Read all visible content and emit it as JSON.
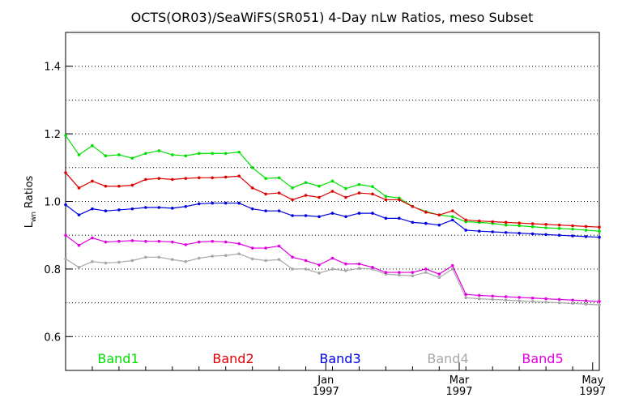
{
  "chart_data": {
    "type": "line",
    "title": "OCTS(OR03)/SeaWiFS(SR051) 4-Day nLw Ratios, meso Subset",
    "ylabel_main": "L",
    "ylabel_sub": "wn",
    "ylabel_rest": " Ratios",
    "xlabel": "",
    "ylim": [
      0.5,
      1.5
    ],
    "xlim": [
      0,
      40
    ],
    "grid": "horizontal dotted",
    "legend_placement": "bottom",
    "yticks": [
      {
        "value": 0.6,
        "label": "0.6"
      },
      {
        "value": 0.8,
        "label": "0.8"
      },
      {
        "value": 1.0,
        "label": "1.0"
      },
      {
        "value": 1.2,
        "label": "1.2"
      },
      {
        "value": 1.4,
        "label": "1.4"
      }
    ],
    "xticks": [
      {
        "value": 19.5,
        "month": "Jan",
        "year": "1997"
      },
      {
        "value": 29.5,
        "month": "Mar",
        "year": "1997"
      },
      {
        "value": 39.5,
        "month": "May",
        "year": "1997"
      }
    ],
    "x": [
      0,
      1,
      2,
      3,
      4,
      5,
      6,
      7,
      8,
      9,
      10,
      11,
      12,
      13,
      14,
      15,
      16,
      17,
      18,
      19,
      20,
      21,
      22,
      23,
      24,
      25,
      26,
      27,
      28,
      29,
      30,
      31,
      32,
      33,
      34,
      35,
      36,
      37,
      38,
      39,
      40
    ],
    "series": [
      {
        "name": "Band1",
        "color": "#00e000",
        "values": [
          1.195,
          1.138,
          1.165,
          1.135,
          1.138,
          1.128,
          1.142,
          1.15,
          1.138,
          1.135,
          1.142,
          1.142,
          1.142,
          1.146,
          1.1,
          1.068,
          1.07,
          1.04,
          1.056,
          1.045,
          1.06,
          1.038,
          1.05,
          1.044,
          1.015,
          1.01,
          0.985,
          0.97,
          0.96,
          0.955,
          0.94,
          0.938,
          0.935,
          0.93,
          0.928,
          0.925,
          0.922,
          0.92,
          0.918,
          0.915,
          0.912
        ]
      },
      {
        "name": "Band2",
        "color": "#e00000",
        "values": [
          1.085,
          1.04,
          1.06,
          1.045,
          1.045,
          1.048,
          1.065,
          1.068,
          1.065,
          1.068,
          1.07,
          1.07,
          1.072,
          1.075,
          1.04,
          1.022,
          1.025,
          1.005,
          1.018,
          1.012,
          1.03,
          1.012,
          1.025,
          1.022,
          1.005,
          1.005,
          0.985,
          0.968,
          0.96,
          0.972,
          0.945,
          0.942,
          0.94,
          0.938,
          0.936,
          0.934,
          0.932,
          0.93,
          0.928,
          0.926,
          0.924
        ]
      },
      {
        "name": "Band3",
        "color": "#0000e0",
        "values": [
          0.99,
          0.96,
          0.978,
          0.972,
          0.975,
          0.978,
          0.982,
          0.982,
          0.98,
          0.985,
          0.993,
          0.995,
          0.995,
          0.995,
          0.978,
          0.972,
          0.972,
          0.958,
          0.958,
          0.955,
          0.965,
          0.955,
          0.965,
          0.965,
          0.95,
          0.95,
          0.938,
          0.935,
          0.93,
          0.945,
          0.915,
          0.912,
          0.91,
          0.908,
          0.906,
          0.904,
          0.902,
          0.9,
          0.898,
          0.896,
          0.894
        ]
      },
      {
        "name": "Band4",
        "color": "#a8a8a8",
        "values": [
          0.83,
          0.805,
          0.822,
          0.818,
          0.82,
          0.825,
          0.835,
          0.835,
          0.828,
          0.822,
          0.832,
          0.838,
          0.84,
          0.845,
          0.83,
          0.825,
          0.828,
          0.8,
          0.8,
          0.788,
          0.8,
          0.795,
          0.802,
          0.8,
          0.785,
          0.782,
          0.78,
          0.79,
          0.775,
          0.8,
          0.715,
          0.712,
          0.71,
          0.708,
          0.706,
          0.704,
          0.702,
          0.7,
          0.698,
          0.696,
          0.694
        ]
      },
      {
        "name": "Band5",
        "color": "#e000e0",
        "values": [
          0.9,
          0.87,
          0.892,
          0.88,
          0.882,
          0.884,
          0.882,
          0.882,
          0.88,
          0.872,
          0.88,
          0.882,
          0.88,
          0.875,
          0.862,
          0.862,
          0.868,
          0.835,
          0.825,
          0.812,
          0.832,
          0.815,
          0.815,
          0.805,
          0.79,
          0.79,
          0.79,
          0.8,
          0.785,
          0.81,
          0.725,
          0.722,
          0.72,
          0.718,
          0.716,
          0.714,
          0.712,
          0.71,
          0.708,
          0.706,
          0.704
        ]
      }
    ]
  }
}
